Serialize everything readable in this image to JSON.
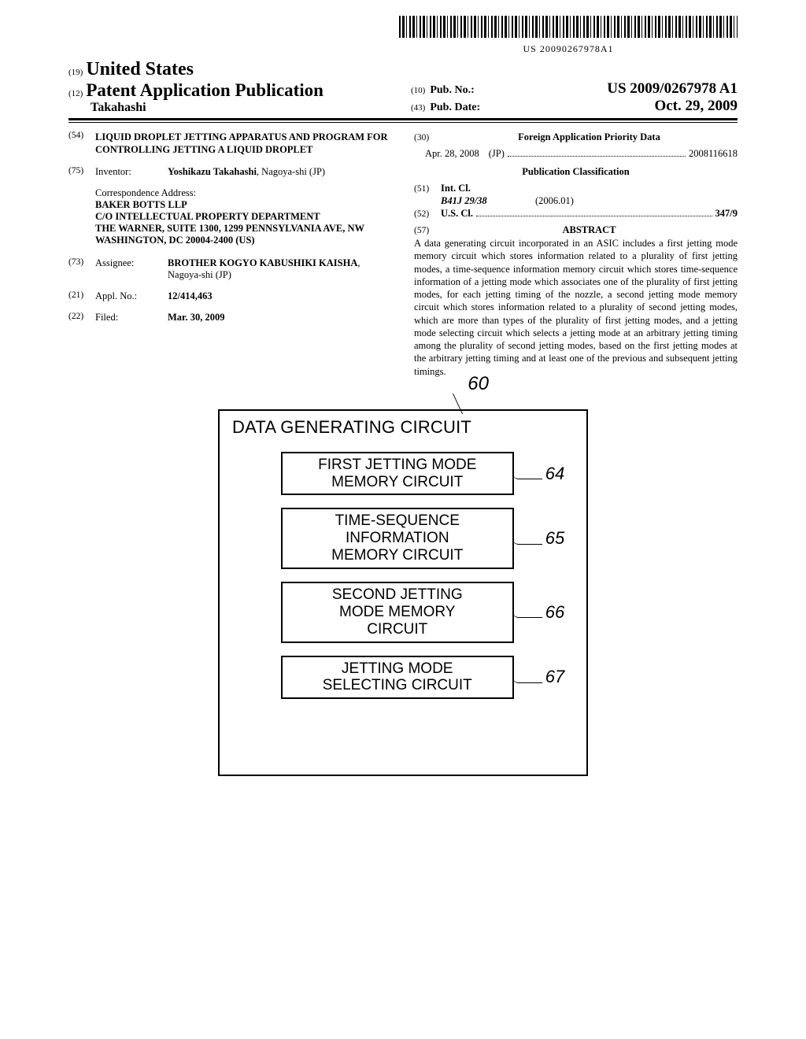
{
  "barcode_text": "US 20090267978A1",
  "header": {
    "code19": "(19)",
    "country": "United States",
    "code12": "(12)",
    "app_pub": "Patent Application Publication",
    "author": "Takahashi",
    "code10": "(10)",
    "pubno_label": "Pub. No.:",
    "pubno": "US 2009/0267978 A1",
    "code43": "(43)",
    "pubdate_label": "Pub. Date:",
    "pubdate": "Oct. 29, 2009"
  },
  "left": {
    "c54": "(54)",
    "title": "LIQUID DROPLET JETTING APPARATUS AND PROGRAM FOR CONTROLLING JETTING A LIQUID DROPLET",
    "c75": "(75)",
    "inventor_label": "Inventor:",
    "inventor_name": "Yoshikazu Takahashi",
    "inventor_loc": ", Nagoya-shi (JP)",
    "corr_label": "Correspondence Address:",
    "corr": "BAKER BOTTS LLP\nC/O INTELLECTUAL PROPERTY DEPARTMENT\nTHE WARNER, SUITE 1300, 1299 PENNSYLVANIA AVE, NW\nWASHINGTON, DC 20004-2400 (US)",
    "c73": "(73)",
    "assignee_label": "Assignee:",
    "assignee_name": "BROTHER KOGYO KABUSHIKI KAISHA",
    "assignee_loc": ", Nagoya-shi (JP)",
    "c21": "(21)",
    "applno_label": "Appl. No.:",
    "applno": "12/414,463",
    "c22": "(22)",
    "filed_label": "Filed:",
    "filed": "Mar. 30, 2009"
  },
  "right": {
    "c30": "(30)",
    "foreign_hdr": "Foreign Application Priority Data",
    "foreign_date": "Apr. 28, 2008",
    "foreign_cc": "(JP)",
    "foreign_no": "2008116618",
    "pubclass_hdr": "Publication Classification",
    "c51": "(51)",
    "intcl_label": "Int. Cl.",
    "intcl_code": "B41J 29/38",
    "intcl_year": "(2006.01)",
    "c52": "(52)",
    "uscl_label": "U.S. Cl.",
    "uscl_val": "347/9",
    "c57": "(57)",
    "abstract_hdr": "ABSTRACT",
    "abstract": "A data generating circuit incorporated in an ASIC includes a first jetting mode memory circuit which stores information related to a plurality of first jetting modes, a time-sequence information memory circuit which stores time-sequence information of a jetting mode which associates one of the plurality of first jetting modes, for each jetting timing of the nozzle, a second jetting mode memory circuit which stores information related to a plurality of second jetting modes, which are more than types of the plurality of first jetting modes, and a jetting mode selecting circuit which selects a jetting mode at an arbitrary jetting timing among the plurality of second jetting modes, based on the first jetting modes at the arbitrary jetting timing and at least one of the previous and subsequent jetting timings."
  },
  "figure": {
    "ref60": "60",
    "outer_title": "DATA GENERATING CIRCUIT",
    "boxes": [
      {
        "label": "FIRST JETTING MODE\nMEMORY CIRCUIT",
        "ref": "64"
      },
      {
        "label": "TIME-SEQUENCE\nINFORMATION\nMEMORY CIRCUIT",
        "ref": "65"
      },
      {
        "label": "SECOND JETTING\nMODE MEMORY\nCIRCUIT",
        "ref": "66"
      },
      {
        "label": "JETTING MODE\nSELECTING CIRCUIT",
        "ref": "67"
      }
    ]
  }
}
